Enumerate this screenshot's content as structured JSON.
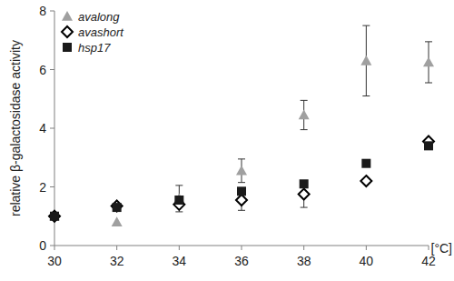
{
  "chart_data": {
    "type": "scatter",
    "x_label": "[°C]",
    "y_label": "relative β-galactosidase activity",
    "x": [
      30,
      32,
      34,
      36,
      38,
      40,
      42
    ],
    "series": [
      {
        "name": "avalong",
        "color": "#a0a0a0",
        "marker": "triangle",
        "values": [
          1.0,
          0.8,
          1.6,
          2.55,
          4.45,
          6.3,
          6.25
        ],
        "errors": [
          null,
          null,
          0.45,
          0.4,
          0.5,
          1.2,
          0.7
        ]
      },
      {
        "name": "avashort",
        "color": "#000000",
        "marker": "open-diamond",
        "values": [
          1.0,
          1.35,
          1.4,
          1.55,
          1.75,
          2.2,
          3.55
        ],
        "errors": [
          null,
          null,
          null,
          0.35,
          0.45,
          null,
          null
        ]
      },
      {
        "name": "hsp17",
        "color": "#1a1a1a",
        "marker": "square",
        "values": [
          1.0,
          1.3,
          1.55,
          1.85,
          2.1,
          2.8,
          3.4
        ],
        "errors": [
          null,
          null,
          null,
          null,
          null,
          null,
          null
        ]
      }
    ],
    "xlim": [
      30,
      42
    ],
    "xticks": [
      30,
      32,
      34,
      36,
      38,
      40,
      42
    ],
    "ylim": [
      0,
      8
    ],
    "yticks": [
      0,
      2,
      4,
      6,
      8
    ],
    "grid": false,
    "legend": "top-left"
  }
}
